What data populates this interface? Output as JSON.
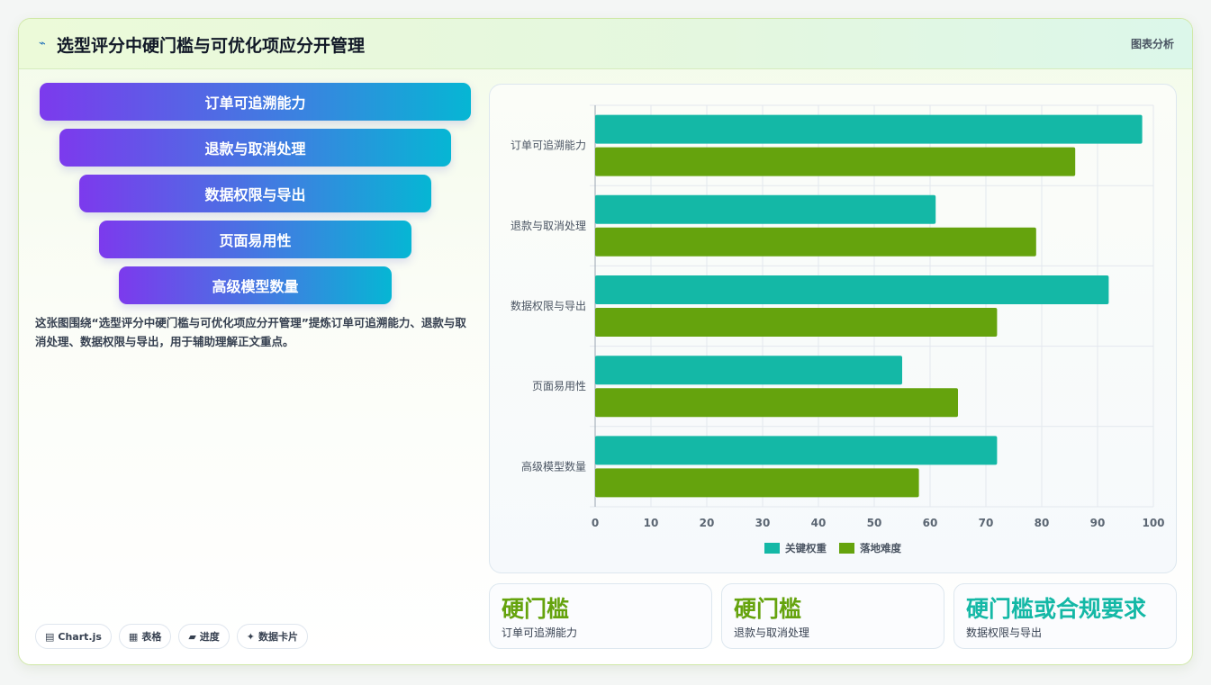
{
  "header": {
    "icon": "sparkline-icon",
    "title": "选型评分中硬门槛与可优化项应分开管理",
    "badge": "图表分析"
  },
  "funnel": {
    "items": [
      "订单可追溯能力",
      "退款与取消处理",
      "数据权限与导出",
      "页面易用性",
      "高级模型数量"
    ]
  },
  "description": "这张图围绕“选型评分中硬门槛与可优化项应分开管理”提炼订单可追溯能力、退款与取消处理、数据权限与导出，用于辅助理解正文重点。",
  "chips": [
    {
      "icon": "chart-icon",
      "glyph": "▤",
      "label": "Chart.js"
    },
    {
      "icon": "table-icon",
      "glyph": "▦",
      "label": "表格"
    },
    {
      "icon": "progress-icon",
      "glyph": "▰",
      "label": "进度"
    },
    {
      "icon": "sparkle-icon",
      "glyph": "✦",
      "label": "数据卡片"
    }
  ],
  "chart_data": {
    "type": "bar",
    "orientation": "horizontal",
    "categories": [
      "订单可追溯能力",
      "退款与取消处理",
      "数据权限与导出",
      "页面易用性",
      "高级模型数量"
    ],
    "series": [
      {
        "name": "关键权重",
        "color": "#14b8a6",
        "values": [
          98,
          61,
          92,
          55,
          72
        ]
      },
      {
        "name": "落地难度",
        "color": "#65a30d",
        "values": [
          86,
          79,
          72,
          65,
          58
        ]
      }
    ],
    "xlim": [
      0,
      100
    ],
    "xticks": [
      0,
      10,
      20,
      30,
      40,
      50,
      60,
      70,
      80,
      90,
      100
    ],
    "grid": true,
    "legend": "bottom"
  },
  "stats": [
    {
      "value": "硬门槛",
      "label": "订单可追溯能力",
      "color": "#65a30d"
    },
    {
      "value": "硬门槛",
      "label": "退款与取消处理",
      "color": "#65a30d"
    },
    {
      "value": "硬门槛或合规要求",
      "label": "数据权限与导出",
      "color": "#14b8a6"
    }
  ],
  "colors": {
    "accent_teal": "#14b8a6",
    "accent_green": "#65a30d",
    "funnel_start": "#7c3aed",
    "funnel_end": "#06b6d4"
  }
}
